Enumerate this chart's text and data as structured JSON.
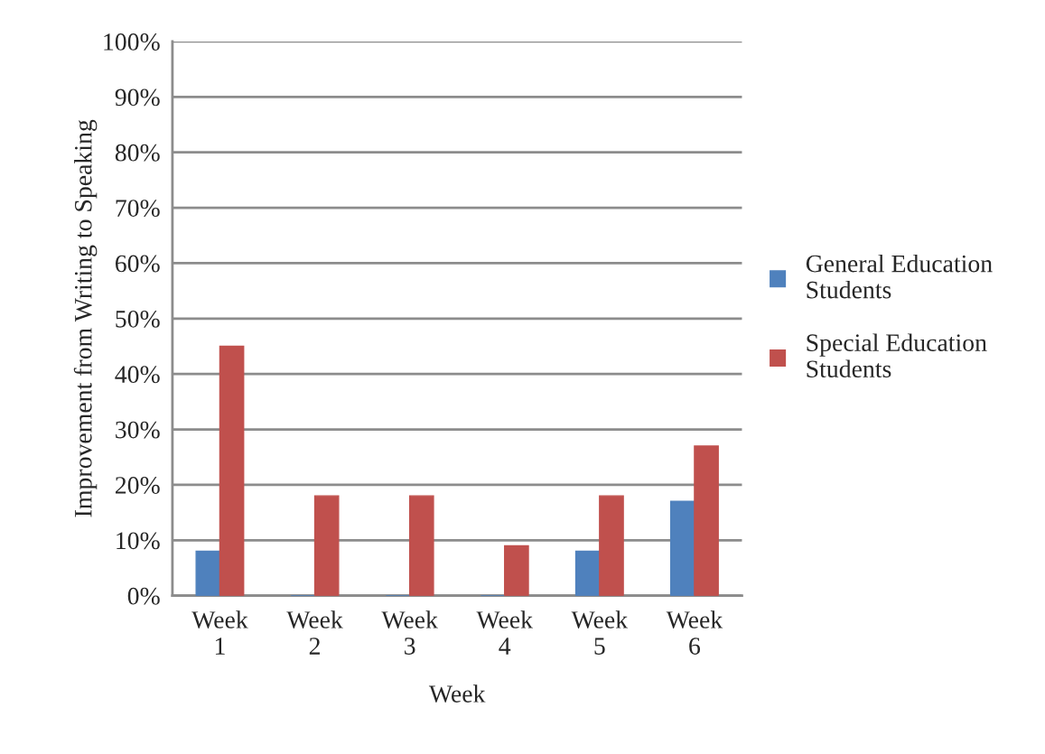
{
  "chart_data": {
    "type": "bar",
    "xlabel": "Week",
    "ylabel": "Improvement from Writing to Speaking",
    "categories": [
      "Week\n1",
      "Week\n2",
      "Week\n3",
      "Week\n4",
      "Week\n5",
      "Week\n6"
    ],
    "series": [
      {
        "name": "General Education\nStudents",
        "color": "#4f81bd",
        "values": [
          8,
          0,
          0,
          0,
          8,
          17
        ]
      },
      {
        "name": "Special Education\nStudents",
        "color": "#c0504d",
        "values": [
          45,
          18,
          18,
          9,
          18,
          27
        ]
      }
    ],
    "ylim": [
      0,
      100
    ],
    "yticks": [
      {
        "value": 0,
        "label": "0%"
      },
      {
        "value": 10,
        "label": "10%"
      },
      {
        "value": 20,
        "label": "20%"
      },
      {
        "value": 30,
        "label": "30%"
      },
      {
        "value": 40,
        "label": "40%"
      },
      {
        "value": 50,
        "label": "50%"
      },
      {
        "value": 60,
        "label": "60%"
      },
      {
        "value": 70,
        "label": "70%"
      },
      {
        "value": 80,
        "label": "80%"
      },
      {
        "value": 90,
        "label": "90%"
      },
      {
        "value": 100,
        "label": "100%"
      }
    ],
    "grid": "y",
    "legend": "right"
  }
}
